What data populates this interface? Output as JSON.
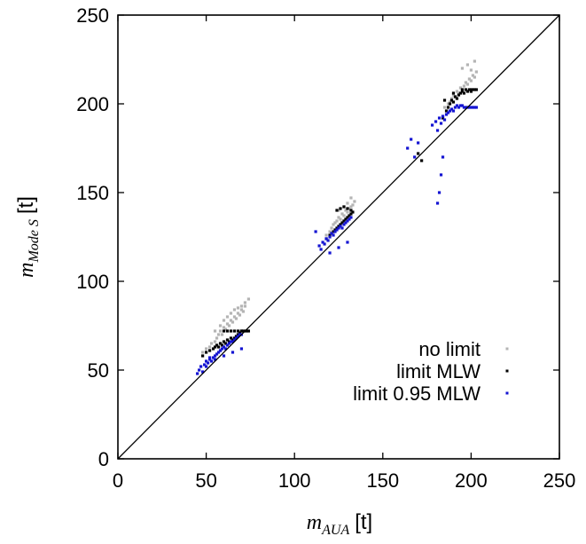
{
  "chart_data": {
    "type": "scatter",
    "xlim": [
      0,
      250
    ],
    "ylim": [
      0,
      250
    ],
    "xticks": [
      0,
      50,
      100,
      150,
      200,
      250
    ],
    "yticks": [
      0,
      50,
      100,
      150,
      200,
      250
    ],
    "xlabel": {
      "main": "m",
      "sub": "AUA",
      "unit": "[t]"
    },
    "ylabel": {
      "main": "m",
      "sub": "Mode S",
      "unit": "[t]"
    },
    "grid": false,
    "legend_position": "bottom-right",
    "reference_line": {
      "x": [
        0,
        250
      ],
      "y": [
        0,
        250
      ],
      "color": "#000000"
    },
    "series": [
      {
        "name": "no limit",
        "color": "#b4b4b4",
        "x": [
          48,
          50,
          52,
          53,
          55,
          56,
          57,
          58,
          59,
          60,
          61,
          62,
          63,
          64,
          65,
          66,
          67,
          68,
          69,
          70,
          71,
          72,
          55,
          58,
          60,
          62,
          64,
          66,
          68,
          70,
          72,
          74,
          118,
          120,
          121,
          122,
          123,
          124,
          125,
          126,
          127,
          128,
          129,
          130,
          131,
          132,
          133,
          134,
          125,
          128,
          130,
          132,
          185,
          187,
          188,
          189,
          190,
          191,
          192,
          193,
          194,
          195,
          196,
          197,
          198,
          199,
          200,
          201,
          202,
          203,
          195,
          198,
          200,
          202
        ],
        "y": [
          60,
          62,
          63,
          65,
          66,
          68,
          70,
          72,
          70,
          74,
          73,
          76,
          75,
          78,
          77,
          80,
          79,
          82,
          81,
          84,
          83,
          86,
          72,
          75,
          78,
          80,
          82,
          84,
          85,
          86,
          88,
          90,
          126,
          128,
          130,
          132,
          133,
          134,
          136,
          135,
          138,
          137,
          140,
          139,
          141,
          142,
          143,
          145,
          140,
          142,
          144,
          147,
          198,
          200,
          201,
          203,
          205,
          204,
          207,
          206,
          209,
          208,
          210,
          212,
          211,
          214,
          213,
          216,
          215,
          218,
          220,
          222,
          219,
          224
        ]
      },
      {
        "name": "limit MLW",
        "color": "#000000",
        "x": [
          48,
          50,
          52,
          54,
          55,
          56,
          57,
          58,
          59,
          60,
          61,
          62,
          63,
          64,
          65,
          66,
          67,
          68,
          69,
          70,
          71,
          72,
          73,
          74,
          60,
          62,
          64,
          66,
          68,
          70,
          118,
          120,
          121,
          122,
          123,
          124,
          125,
          126,
          127,
          128,
          129,
          130,
          131,
          132,
          133,
          124,
          126,
          128,
          130,
          132,
          170,
          172,
          184,
          186,
          187,
          188,
          189,
          190,
          191,
          192,
          193,
          194,
          195,
          196,
          197,
          198,
          199,
          200,
          201,
          202,
          203,
          185,
          190,
          195,
          200
        ],
        "y": [
          58,
          60,
          61,
          62,
          63,
          64,
          63,
          65,
          64,
          66,
          65,
          67,
          66,
          68,
          67,
          68,
          69,
          70,
          71,
          72,
          72,
          72,
          72,
          72,
          72,
          72,
          72,
          72,
          72,
          72,
          124,
          126,
          127,
          128,
          129,
          130,
          131,
          132,
          133,
          134,
          135,
          136,
          137,
          138,
          139,
          140,
          141,
          142,
          141,
          140,
          172,
          168,
          192,
          196,
          198,
          200,
          202,
          201,
          204,
          203,
          205,
          206,
          207,
          206,
          208,
          207,
          208,
          208,
          208,
          208,
          208,
          202,
          206,
          208,
          207
        ]
      },
      {
        "name": "limit 0.95 MLW",
        "color": "#1414d2",
        "x": [
          45,
          46,
          47,
          48,
          49,
          50,
          51,
          52,
          53,
          54,
          55,
          56,
          57,
          58,
          59,
          60,
          61,
          62,
          63,
          64,
          65,
          66,
          67,
          68,
          69,
          70,
          50,
          55,
          60,
          65,
          70,
          52,
          58,
          112,
          114,
          115,
          116,
          117,
          118,
          119,
          120,
          121,
          122,
          123,
          124,
          125,
          126,
          127,
          128,
          129,
          130,
          131,
          132,
          120,
          125,
          130,
          164,
          166,
          168,
          170,
          178,
          180,
          181,
          182,
          183,
          184,
          185,
          186,
          187,
          188,
          189,
          190,
          191,
          192,
          193,
          194,
          195,
          196,
          197,
          198,
          199,
          200,
          201,
          202,
          203,
          181,
          182,
          183,
          184
        ],
        "y": [
          48,
          50,
          52,
          49,
          53,
          55,
          54,
          56,
          55,
          57,
          58,
          59,
          60,
          61,
          62,
          63,
          62,
          64,
          65,
          66,
          66,
          67,
          68,
          69,
          70,
          70,
          52,
          56,
          58,
          60,
          62,
          57,
          61,
          128,
          120,
          118,
          122,
          121,
          124,
          123,
          125,
          127,
          126,
          128,
          129,
          130,
          131,
          130,
          132,
          133,
          134,
          135,
          136,
          116,
          119,
          122,
          175,
          180,
          170,
          178,
          188,
          190,
          185,
          192,
          189,
          193,
          191,
          194,
          195,
          196,
          197,
          196,
          198,
          199,
          198,
          199,
          199,
          198,
          198,
          198,
          198,
          198,
          198,
          198,
          198,
          144,
          150,
          160,
          170
        ]
      }
    ]
  }
}
